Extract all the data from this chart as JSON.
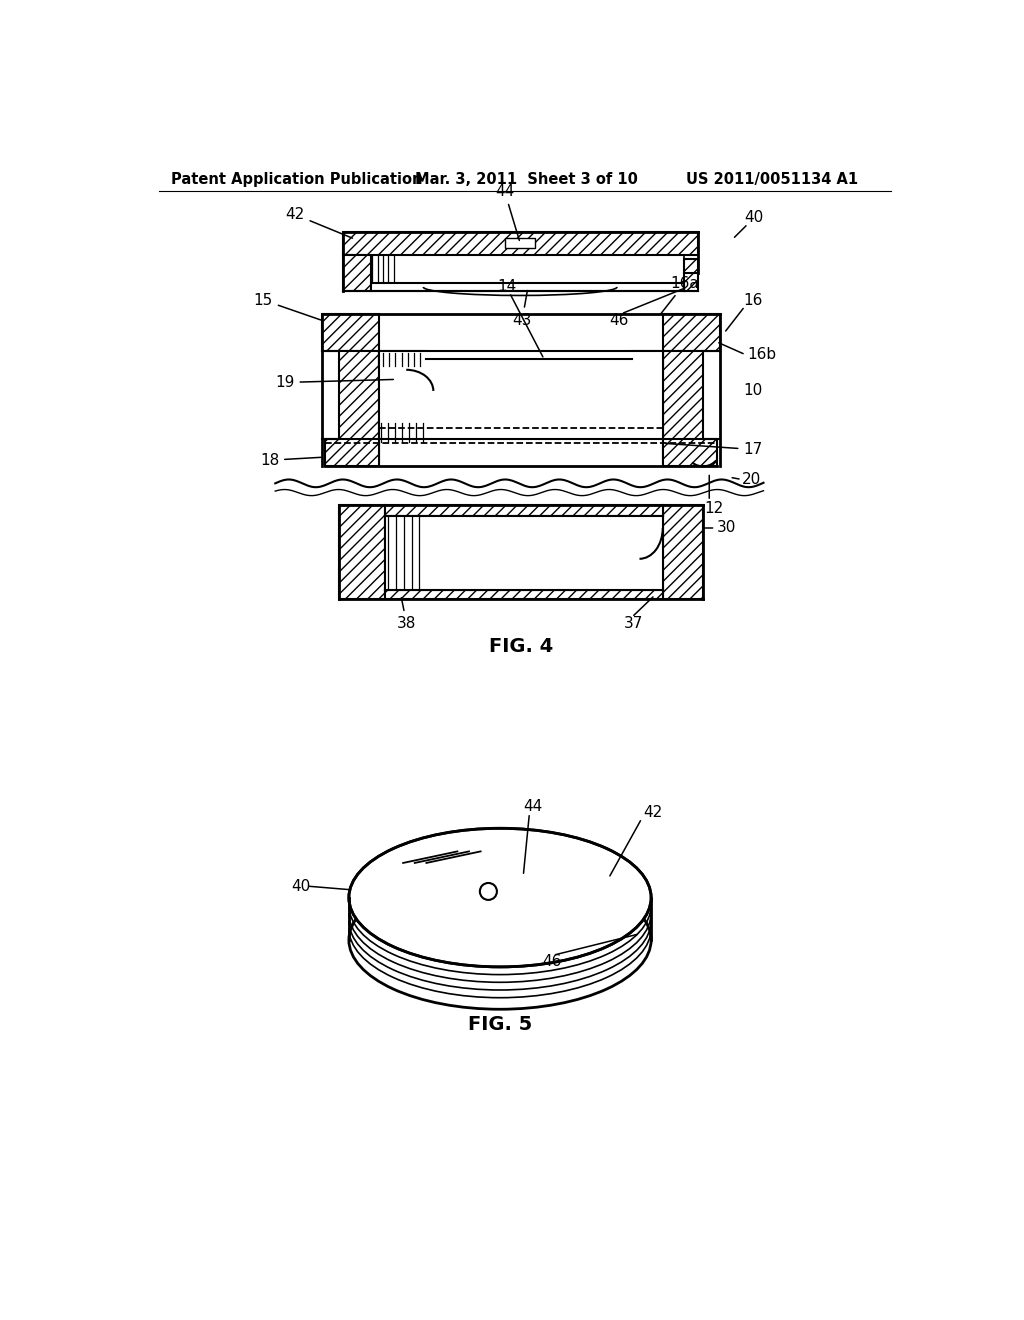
{
  "bg_color": "#ffffff",
  "header_left": "Patent Application Publication",
  "header_mid": "Mar. 3, 2011  Sheet 3 of 10",
  "header_right": "US 2011/0051134 A1",
  "fig4_label": "FIG. 4",
  "fig5_label": "FIG. 5",
  "line_color": "#000000",
  "label_fontsize": 11,
  "header_fontsize": 10.5
}
